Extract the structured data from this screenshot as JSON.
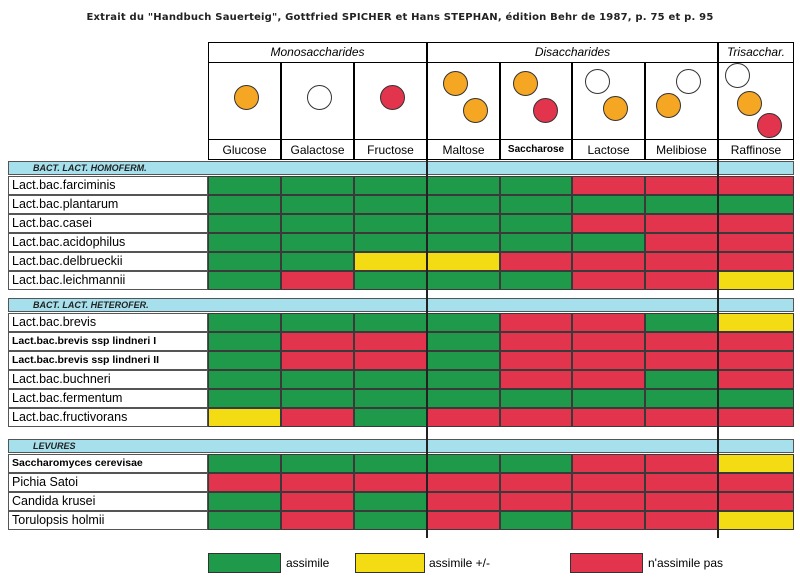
{
  "title": "Extrait du \"Handbuch Sauerteig\", Gottfried SPICHER  et Hans STEPHAN,  édition Behr de 1987, p. 75 et p. 95",
  "groups": [
    {
      "label": "Monosaccharides"
    },
    {
      "label": "Disaccharides"
    },
    {
      "label": "Trisacchar."
    }
  ],
  "sugars": [
    "Glucose",
    "Galactose",
    "Fructose",
    "Maltose",
    "Saccharose",
    "Lactose",
    "Melibiose",
    "Raffinose"
  ],
  "molecules": [
    [
      "orange"
    ],
    [
      "white"
    ],
    [
      "red"
    ],
    [
      "orange",
      "orange"
    ],
    [
      "orange",
      "red"
    ],
    [
      "white",
      "orange"
    ],
    [
      "orange",
      "white"
    ],
    [
      "white",
      "orange",
      "red"
    ]
  ],
  "colors": {
    "green": "#1f9a4b",
    "yellow": "#f3dc13",
    "red": "#e3344d",
    "orange": "#f5a623",
    "white": "#ffffff",
    "section": "#a6e0ec"
  },
  "sections": [
    {
      "label": "BACT. LACT. HOMOFERM.",
      "rows": [
        {
          "name": "Lact.bac.farciminis",
          "bold": false,
          "cells": [
            "a",
            "a",
            "a",
            "a",
            "a",
            "n",
            "n",
            "n"
          ]
        },
        {
          "name": "Lact.bac.plantarum",
          "bold": false,
          "cells": [
            "a",
            "a",
            "a",
            "a",
            "a",
            "a",
            "a",
            "a"
          ]
        },
        {
          "name": "Lact.bac.casei",
          "bold": false,
          "cells": [
            "a",
            "a",
            "a",
            "a",
            "a",
            "n",
            "n",
            "n"
          ]
        },
        {
          "name": "Lact.bac.acidophilus",
          "bold": false,
          "cells": [
            "a",
            "a",
            "a",
            "a",
            "a",
            "a",
            "n",
            "n"
          ]
        },
        {
          "name": "Lact.bac.delbrueckii",
          "bold": false,
          "cells": [
            "a",
            "a",
            "p",
            "p",
            "n",
            "n",
            "n",
            "n"
          ]
        },
        {
          "name": "Lact.bac.leichmannii",
          "bold": false,
          "cells": [
            "a",
            "n",
            "a",
            "a",
            "a",
            "n",
            "n",
            "p"
          ]
        }
      ]
    },
    {
      "label": "BACT. LACT. HETEROFER.",
      "rows": [
        {
          "name": "Lact.bac.brevis",
          "bold": false,
          "cells": [
            "a",
            "a",
            "a",
            "a",
            "n",
            "n",
            "a",
            "p"
          ]
        },
        {
          "name": "Lact.bac.brevis ssp lindneri I",
          "bold": true,
          "cells": [
            "a",
            "n",
            "n",
            "a",
            "n",
            "n",
            "n",
            "n"
          ]
        },
        {
          "name": "Lact.bac.brevis ssp lindneri II",
          "bold": true,
          "cells": [
            "a",
            "n",
            "n",
            "a",
            "n",
            "n",
            "n",
            "n"
          ]
        },
        {
          "name": "Lact.bac.buchneri",
          "bold": false,
          "cells": [
            "a",
            "a",
            "a",
            "a",
            "n",
            "n",
            "a",
            "n"
          ]
        },
        {
          "name": "Lact.bac.fermentum",
          "bold": false,
          "cells": [
            "a",
            "a",
            "a",
            "a",
            "a",
            "a",
            "a",
            "a"
          ]
        },
        {
          "name": "Lact.bac.fructivorans",
          "bold": false,
          "cells": [
            "p",
            "n",
            "a",
            "n",
            "n",
            "n",
            "n",
            "n"
          ]
        }
      ]
    },
    {
      "label": "LEVURES",
      "rows": [
        {
          "name": "Saccharomyces cerevisae",
          "bold": true,
          "cells": [
            "a",
            "a",
            "a",
            "a",
            "a",
            "n",
            "n",
            "p"
          ]
        },
        {
          "name": "Pichia Satoi",
          "bold": false,
          "cells": [
            "n",
            "n",
            "n",
            "n",
            "n",
            "n",
            "n",
            "n"
          ]
        },
        {
          "name": "Candida krusei",
          "bold": false,
          "cells": [
            "a",
            "n",
            "a",
            "n",
            "n",
            "n",
            "n",
            "n"
          ]
        },
        {
          "name": "Torulopsis holmii",
          "bold": false,
          "cells": [
            "a",
            "n",
            "a",
            "n",
            "a",
            "n",
            "n",
            "p"
          ]
        }
      ]
    }
  ],
  "legend": [
    {
      "key": "a",
      "label": "assimile"
    },
    {
      "key": "p",
      "label": "assimile +/-"
    },
    {
      "key": "n",
      "label": "n'assimile pas"
    }
  ]
}
